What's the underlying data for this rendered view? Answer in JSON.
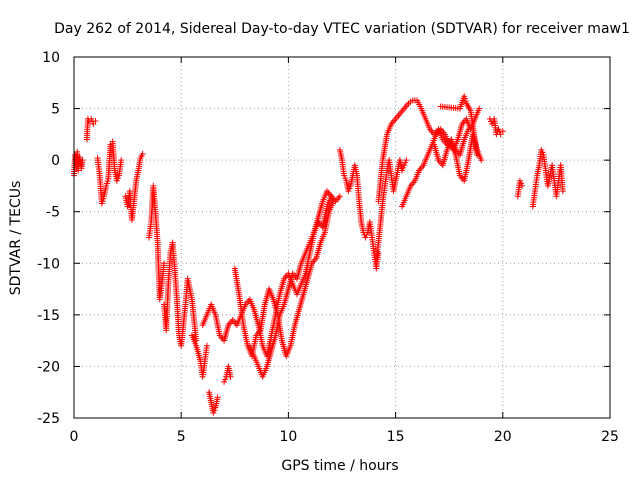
{
  "chart_data": {
    "type": "scatter",
    "title": "Day 262 of 2014, Sidereal Day-to-day VTEC variation (SDTVAR) for receiver maw1",
    "xlabel": "GPS time / hours",
    "ylabel": "SDTVAR / TECUs",
    "xlim": [
      0,
      25
    ],
    "ylim": [
      -25,
      10
    ],
    "x_ticks": [
      0,
      5,
      10,
      15,
      20,
      25
    ],
    "y_ticks": [
      -25,
      -20,
      -15,
      -10,
      -5,
      0,
      5,
      10
    ],
    "x_tick_labels": [
      "0",
      "5",
      "10",
      "15",
      "20",
      "25"
    ],
    "y_tick_labels": [
      "-25",
      "-20",
      "-15",
      "-10",
      "-5",
      "0",
      "5",
      "10"
    ],
    "grid": true,
    "marker": "+",
    "series": [
      {
        "name": "SDTVAR",
        "color": "#ff0000",
        "tracks": [
          {
            "x": [
              0.0,
              0.05,
              0.1,
              0.15,
              0.2,
              0.25,
              0.3,
              0.35,
              0.4
            ],
            "y": [
              -1.5,
              0.5,
              -0.5,
              0.8,
              -1.0,
              0.3,
              -0.3,
              -0.8,
              0.0
            ]
          },
          {
            "x": [
              0.6,
              0.65,
              0.7,
              0.8,
              0.9,
              1.0
            ],
            "y": [
              2.0,
              4.0,
              3.8,
              4.0,
              3.5,
              3.8
            ]
          },
          {
            "x": [
              1.1,
              1.2,
              1.3,
              1.4,
              1.5,
              1.6,
              1.7,
              1.8,
              1.9,
              2.0,
              2.1,
              2.2
            ],
            "y": [
              0.2,
              -1.5,
              -4.2,
              -3.5,
              -2.5,
              -1.8,
              1.5,
              1.8,
              -1.0,
              -2.0,
              -1.5,
              0.0
            ]
          },
          {
            "x": [
              2.4,
              2.5,
              2.6,
              2.7,
              2.8,
              2.9,
              3.0,
              3.1,
              3.2
            ],
            "y": [
              -3.5,
              -4.5,
              -3.0,
              -5.8,
              -4.0,
              -2.0,
              -1.0,
              0.2,
              0.6
            ]
          },
          {
            "x": [
              3.5,
              3.6,
              3.7,
              3.8,
              3.9,
              4.0,
              4.1,
              4.2
            ],
            "y": [
              -7.5,
              -6.0,
              -2.5,
              -5.0,
              -8.0,
              -13.5,
              -12.0,
              -10.0
            ]
          },
          {
            "x": [
              4.2,
              4.3,
              4.4,
              4.5,
              4.6,
              4.7,
              4.8,
              4.9,
              5.0,
              5.1,
              5.2,
              5.3,
              5.4,
              5.5,
              5.6,
              5.7
            ],
            "y": [
              -14.0,
              -16.5,
              -12.0,
              -9.0,
              -8.0,
              -10.5,
              -13.5,
              -17.0,
              -18.0,
              -16.0,
              -14.0,
              -11.5,
              -12.5,
              -13.5,
              -15.5,
              -17.5
            ]
          },
          {
            "x": [
              5.5,
              5.7,
              5.9,
              6.0,
              6.1,
              6.2
            ],
            "y": [
              -17.0,
              -18.0,
              -19.5,
              -21.0,
              -19.5,
              -18.0
            ]
          },
          {
            "x": [
              6.0,
              6.2,
              6.4,
              6.6,
              6.8,
              7.0,
              7.2,
              7.4,
              7.6,
              7.8,
              8.0,
              8.2,
              8.4,
              8.6,
              8.8,
              9.0,
              9.2,
              9.4,
              9.6,
              9.8,
              10.0,
              10.2,
              10.4,
              10.6,
              10.8,
              11.0,
              11.2,
              11.4,
              11.6,
              11.8,
              12.0,
              12.2,
              12.4
            ],
            "y": [
              -16.0,
              -15.0,
              -14.0,
              -15.0,
              -17.0,
              -17.5,
              -16.0,
              -15.5,
              -16.0,
              -15.0,
              -14.0,
              -13.5,
              -14.5,
              -16.0,
              -18.0,
              -19.0,
              -17.0,
              -15.0,
              -13.0,
              -11.5,
              -11.0,
              -12.0,
              -13.0,
              -12.0,
              -11.0,
              -9.0,
              -7.0,
              -6.0,
              -6.5,
              -4.5,
              -3.5,
              -4.0,
              -3.5
            ]
          },
          {
            "x": [
              6.3,
              6.4,
              6.5,
              6.6,
              6.7
            ],
            "y": [
              -22.5,
              -23.5,
              -24.5,
              -24.0,
              -23.0
            ]
          },
          {
            "x": [
              7.0,
              7.1,
              7.2,
              7.3
            ],
            "y": [
              -21.5,
              -21.0,
              -20.0,
              -21.0
            ]
          },
          {
            "x": [
              7.5,
              7.7,
              7.9,
              8.1,
              8.3,
              8.5,
              8.7,
              8.9,
              9.1,
              9.3,
              9.5,
              9.7,
              9.9,
              10.1,
              10.3,
              10.5,
              10.7,
              10.9,
              11.1,
              11.3,
              11.5,
              11.7,
              11.9,
              12.1
            ],
            "y": [
              -10.5,
              -13.0,
              -16.0,
              -18.0,
              -19.0,
              -17.0,
              -16.5,
              -14.0,
              -12.5,
              -13.5,
              -15.0,
              -17.5,
              -19.0,
              -18.0,
              -16.0,
              -14.5,
              -13.0,
              -11.5,
              -10.0,
              -9.5,
              -8.0,
              -7.0,
              -5.0,
              -4.0
            ]
          },
          {
            "x": [
              8.2,
              8.4,
              8.6,
              8.8,
              9.0,
              9.2,
              9.4,
              9.6,
              9.8,
              10.0,
              10.2,
              10.4,
              10.6,
              10.8,
              11.0,
              11.2,
              11.4,
              11.6,
              11.8,
              12.0
            ],
            "y": [
              -18.0,
              -19.0,
              -20.0,
              -21.0,
              -20.0,
              -18.5,
              -17.0,
              -15.0,
              -14.0,
              -12.5,
              -11.0,
              -11.5,
              -10.0,
              -9.0,
              -8.0,
              -7.0,
              -5.5,
              -4.0,
              -3.0,
              -3.5
            ]
          },
          {
            "x": [
              12.4,
              12.5,
              12.6,
              12.7,
              12.8,
              12.9,
              13.0,
              13.1,
              13.2,
              13.3,
              13.4,
              13.5,
              13.6,
              13.7,
              13.8,
              13.9,
              14.0,
              14.1,
              14.2
            ],
            "y": [
              1.0,
              0.0,
              -1.5,
              -2.0,
              -3.0,
              -2.5,
              -1.5,
              -0.5,
              -1.5,
              -4.0,
              -6.0,
              -7.0,
              -7.5,
              -7.0,
              -6.0,
              -7.5,
              -9.0,
              -10.5,
              -9.0
            ]
          },
          {
            "x": [
              14.1,
              14.2,
              14.3,
              14.4,
              14.5,
              14.6,
              14.7,
              14.8,
              14.9,
              15.0,
              15.1,
              15.2,
              15.3,
              15.4,
              15.5
            ],
            "y": [
              -9.5,
              -8.0,
              -6.0,
              -4.0,
              -2.5,
              -1.0,
              0.0,
              -1.5,
              -3.0,
              -2.0,
              -1.0,
              0.0,
              -1.0,
              -0.5,
              0.0
            ]
          },
          {
            "x": [
              14.2,
              14.4,
              14.6,
              14.8,
              15.0,
              15.2,
              15.4,
              15.6,
              15.8,
              16.0,
              16.2,
              16.4,
              16.6,
              16.8,
              17.0,
              17.2,
              17.4,
              17.6,
              17.8,
              18.0,
              18.2,
              18.4
            ],
            "y": [
              -4.0,
              0.0,
              2.5,
              3.5,
              4.0,
              4.5,
              5.0,
              5.5,
              5.8,
              5.8,
              5.0,
              4.0,
              3.0,
              2.5,
              3.0,
              2.0,
              1.5,
              2.0,
              1.0,
              0.5,
              2.0,
              3.0
            ]
          },
          {
            "x": [
              15.3,
              15.5,
              15.7,
              15.9,
              16.1,
              16.3,
              16.5,
              16.7,
              16.9,
              17.1,
              17.3,
              17.5,
              17.7,
              17.9,
              18.1,
              18.3,
              18.5,
              18.7,
              18.9
            ],
            "y": [
              -4.5,
              -3.5,
              -2.5,
              -2.0,
              -1.0,
              -0.5,
              0.5,
              1.5,
              2.5,
              3.0,
              2.5,
              1.5,
              1.0,
              2.0,
              3.5,
              4.0,
              3.0,
              4.0,
              5.0
            ]
          },
          {
            "x": [
              16.8,
              17.0,
              17.2,
              17.4,
              17.6,
              17.8,
              18.0,
              18.2,
              18.4,
              18.6,
              18.8,
              19.0
            ],
            "y": [
              1.5,
              0.0,
              -0.5,
              1.0,
              2.0,
              0.5,
              -1.5,
              -2.0,
              0.0,
              2.5,
              1.0,
              0.0
            ]
          },
          {
            "x": [
              17.1,
              18.0,
              18.2,
              18.3,
              18.5,
              18.8
            ],
            "y": [
              5.2,
              5.0,
              6.2,
              5.5,
              4.8,
              0.5
            ]
          },
          {
            "x": [
              19.4,
              19.5,
              19.6,
              19.7,
              19.8,
              19.9,
              20.0
            ],
            "y": [
              4.0,
              3.5,
              4.0,
              2.5,
              3.0,
              2.5,
              2.8
            ]
          },
          {
            "x": [
              20.7,
              20.8,
              20.9
            ],
            "y": [
              -3.5,
              -2.0,
              -2.5
            ]
          },
          {
            "x": [
              21.4,
              21.5,
              21.6,
              21.7,
              21.8,
              21.9,
              22.0,
              22.1,
              22.2,
              22.3,
              22.4,
              22.5,
              22.6,
              22.7,
              22.8
            ],
            "y": [
              -4.5,
              -3.0,
              -1.5,
              -0.5,
              1.0,
              0.5,
              -1.0,
              -2.5,
              -1.5,
              -0.5,
              -2.0,
              -3.5,
              -2.0,
              -0.5,
              -3.0
            ]
          }
        ]
      }
    ]
  }
}
